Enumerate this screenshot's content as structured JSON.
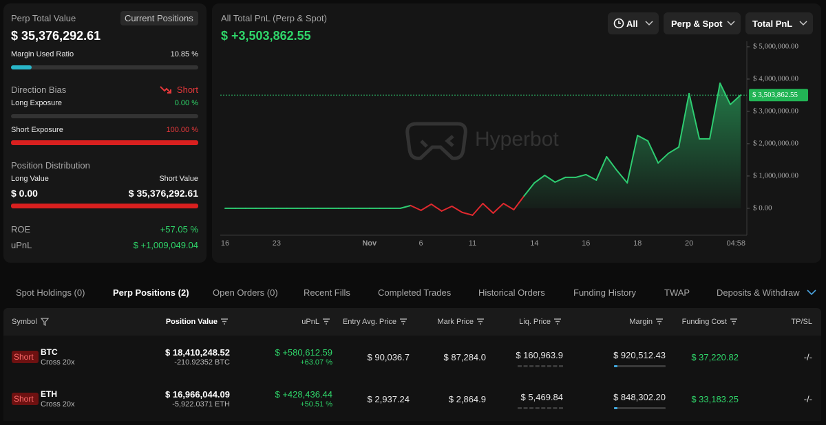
{
  "summary": {
    "title": "Perp Total Value",
    "badge": "Current Positions",
    "total": "$ 35,376,292.61",
    "margin_label": "Margin Used Ratio",
    "margin_used": {
      "value": 10.85,
      "label": "10.85 %"
    },
    "direction_label": "Direction Bias",
    "direction": "Short",
    "long_exposure_label": "Long Exposure",
    "long_exposure": {
      "value": 0,
      "label": "0.00 %"
    },
    "short_exposure_label": "Short Exposure",
    "short_exposure": {
      "value": 100,
      "label": "100.00 %"
    },
    "distribution_label": "Position Distribution",
    "long_value_label": "Long Value",
    "short_value_label": "Short Value",
    "long_value": {
      "value": 0,
      "label": "$ 0.00"
    },
    "short_value": {
      "value": 35376292.61,
      "label": "$ 35,376,292.61"
    },
    "roe_label": "ROE",
    "roe": "+57.05 %",
    "upnl_label": "uPnL",
    "upnl": "$ +1,009,049.04"
  },
  "chart_panel": {
    "title": "All Total PnL (Perp & Spot)",
    "total": "$ +3,503,862.55",
    "filters": [
      "All",
      "Perp & Spot",
      "Total PnL"
    ]
  },
  "chart_data": {
    "type": "area",
    "watermark": "Hyperbot",
    "color": "#2ecc71",
    "negative_color": "#e0282e",
    "categories": [
      "16",
      null,
      null,
      null,
      null,
      "23",
      null,
      null,
      null,
      null,
      null,
      null,
      null,
      null,
      "Nov",
      null,
      null,
      null,
      null,
      "6",
      null,
      null,
      null,
      null,
      "11",
      null,
      null,
      null,
      null,
      null,
      "14",
      null,
      null,
      null,
      null,
      "16",
      null,
      null,
      null,
      null,
      "18",
      null,
      null,
      null,
      null,
      "20",
      null,
      null,
      null,
      null,
      "04:58"
    ],
    "values": [
      0,
      0,
      0,
      0,
      0,
      0,
      0,
      0,
      0,
      0,
      0,
      0,
      0,
      0,
      0,
      0,
      0,
      0,
      85000,
      -64000,
      128000,
      -85000,
      64000,
      -128000,
      -213000,
      149000,
      -149000,
      149000,
      -43000,
      383000,
      787000,
      1021000,
      809000,
      957000,
      957000,
      1043000,
      872000,
      1596000,
      1170000,
      787000,
      2255000,
      2085000,
      1404000,
      1702000,
      1894000,
      3553000,
      2149000,
      2149000,
      3872000,
      3213000,
      3503862.55
    ],
    "ylim": [
      -790000,
      5170000
    ],
    "yticks": [
      {
        "value": 0,
        "label": "$ 0.00"
      },
      {
        "value": 1000000,
        "label": "$ 1,000,000.00"
      },
      {
        "value": 2000000,
        "label": "$ 2,000,000.00"
      },
      {
        "value": 3000000,
        "label": "$ 3,000,000.00"
      },
      {
        "value": 4000000,
        "label": "$ 4,000,000.00"
      },
      {
        "value": 5000000,
        "label": "$ 5,000,000.00"
      }
    ],
    "current": {
      "value": 3503862.55,
      "label": "$ 3,503,862.55"
    }
  },
  "tabs": {
    "items": [
      "Spot Holdings (0)",
      "Perp Positions (2)",
      "Open Orders (0)",
      "Recent Fills",
      "Completed Trades",
      "Historical Orders",
      "Funding History",
      "TWAP",
      "Deposits & Withdraw"
    ],
    "active": 1
  },
  "table": {
    "columns": [
      "Symbol",
      "Position Value",
      "uPnL",
      "Entry Avg. Price",
      "Mark Price",
      "Liq. Price",
      "Margin",
      "Funding Cost",
      "TP/SL"
    ],
    "rows": [
      {
        "side": "Short",
        "symbol": "BTC",
        "mode": "Cross 20x",
        "position_value": "$ 18,410,248.52",
        "size": "-210.92352 BTC",
        "upnl": "$ +580,612.59",
        "upnl_pct": "+63.07 %",
        "entry": "$ 90,036.7",
        "mark": "$ 87,284.0",
        "liq": "$ 160,963.9",
        "margin": "$ 920,512.43",
        "funding": "$ 37,220.82",
        "tpsl": "-/-"
      },
      {
        "side": "Short",
        "symbol": "ETH",
        "mode": "Cross 20x",
        "position_value": "$ 16,966,044.09",
        "size": "-5,922.0371 ETH",
        "upnl": "$ +428,436.44",
        "upnl_pct": "+50.51 %",
        "entry": "$ 2,937.24",
        "mark": "$ 2,864.9",
        "liq": "$ 5,469.84",
        "margin": "$ 848,302.20",
        "funding": "$ 33,183.25",
        "tpsl": "-/-"
      }
    ]
  }
}
